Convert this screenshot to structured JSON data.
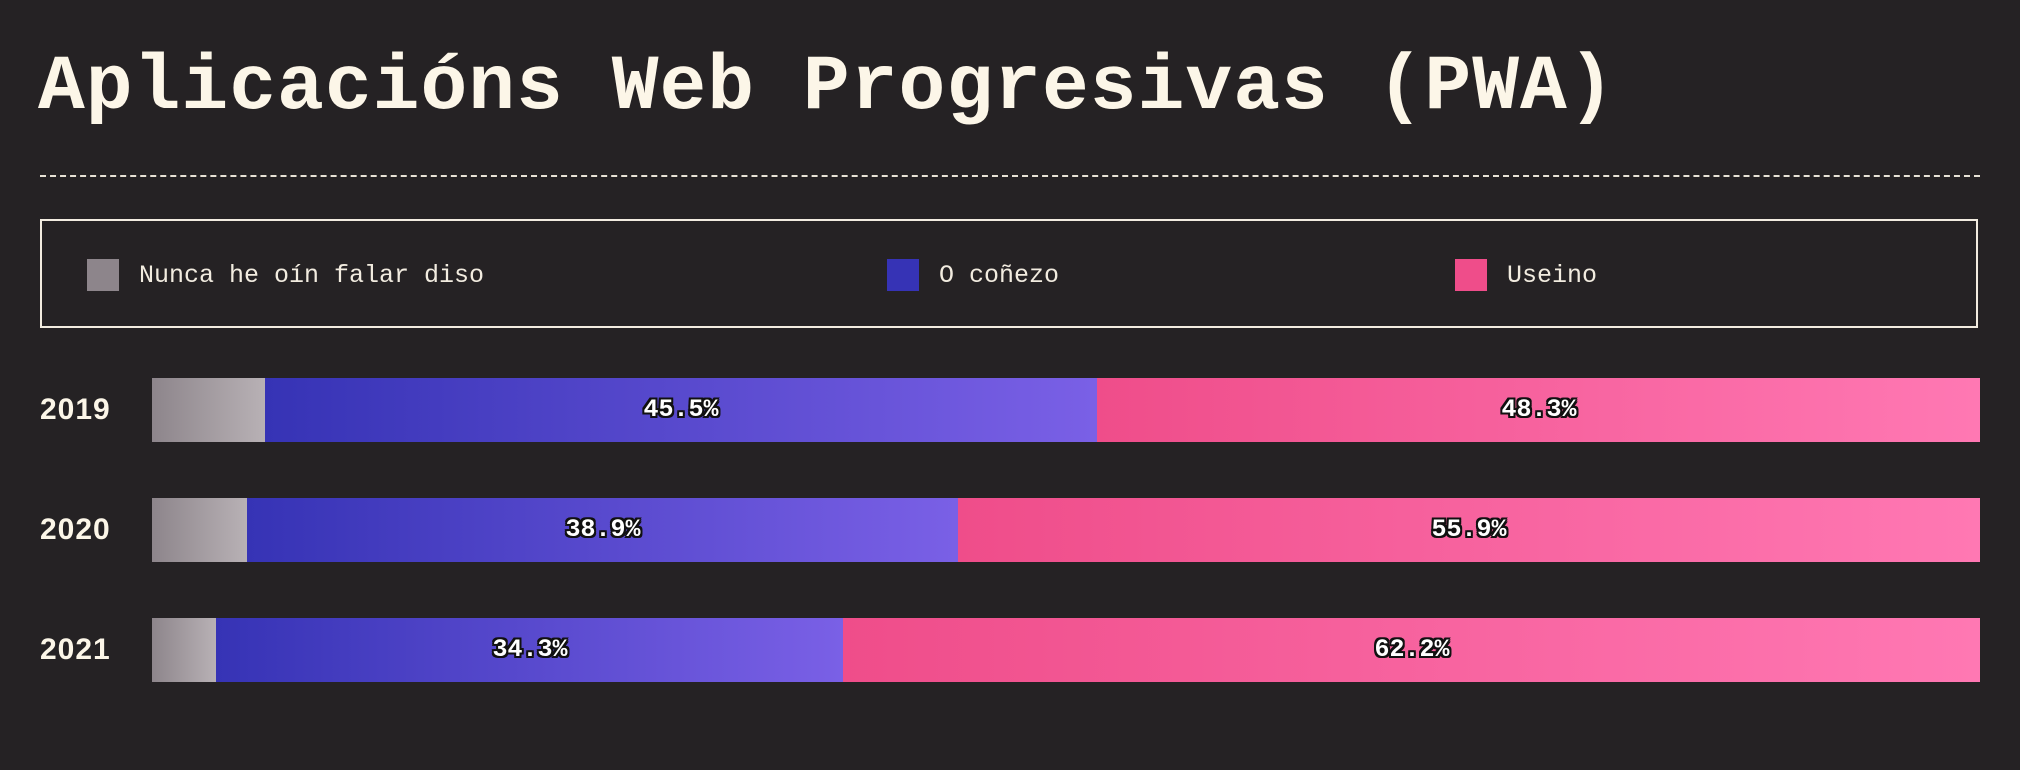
{
  "title": "Aplicacións Web Progresivas (PWA)",
  "colors": {
    "background": "#252224",
    "never_heard": [
      "#8d858b",
      "#b8b1b5"
    ],
    "know": [
      "#3633b5",
      "#7a60e6"
    ],
    "used": [
      "#ef4d8a",
      "#ff78b3"
    ]
  },
  "chart_data": {
    "type": "bar",
    "orientation": "horizontal",
    "stacked": true,
    "percent_scale": true,
    "categories": [
      "2019",
      "2020",
      "2021"
    ],
    "series": [
      {
        "name": "Nunca he oín falar diso",
        "values": [
          6.2,
          5.2,
          3.5
        ],
        "labels": [
          "",
          "",
          ""
        ]
      },
      {
        "name": "O coñezo",
        "values": [
          45.5,
          38.9,
          34.3
        ],
        "labels": [
          "45.5%",
          "38.9%",
          "34.3%"
        ]
      },
      {
        "name": "Useino",
        "values": [
          48.3,
          55.9,
          62.2
        ],
        "labels": [
          "48.3%",
          "55.9%",
          "62.2%"
        ]
      }
    ],
    "legend_position": "top"
  }
}
